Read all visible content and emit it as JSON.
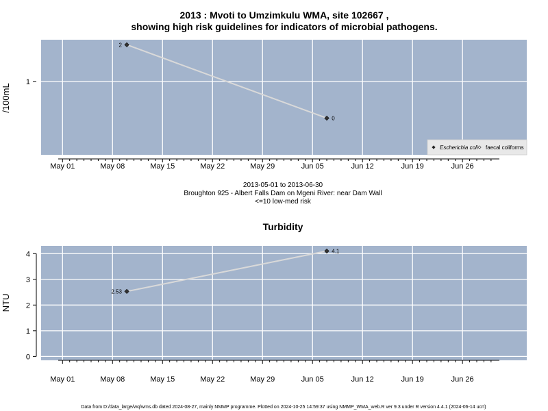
{
  "chart_data": [
    {
      "type": "line",
      "title": "2013 : Mvoti to Umzimkulu WMA, site 102667 ,",
      "subtitle": "showing high risk guidelines for indicators of microbial pathogens.",
      "ylabel": "/100mL",
      "y_scale": "log",
      "y_ticks": [
        1
      ],
      "y_tick_labels": [
        "1"
      ],
      "ylim": [
        0.25,
        2.2
      ],
      "x_ticks": [
        "2013-05-01",
        "2013-05-08",
        "2013-05-15",
        "2013-05-22",
        "2013-05-29",
        "2013-06-05",
        "2013-06-12",
        "2013-06-19",
        "2013-06-26"
      ],
      "x_tick_labels": [
        "May 01",
        "May 08",
        "May 15",
        "May 22",
        "May 29",
        "Jun 05",
        "Jun 12",
        "Jun 19",
        "Jun 26"
      ],
      "xlim": [
        "2013-04-28",
        "2013-07-05"
      ],
      "grid": true,
      "legend_position": "bottom-right",
      "series": [
        {
          "name": "Escherichia coli",
          "x": [
            "2013-05-10",
            "2013-06-07"
          ],
          "y": [
            2,
            0.5
          ],
          "point_labels": [
            "2",
            "0"
          ]
        }
      ],
      "legend": [
        {
          "name": "Escherichia coli",
          "marker": "filled-diamond",
          "italic": true
        },
        {
          "name": "faecal coliforms",
          "marker": "open-diamond",
          "italic": false
        }
      ],
      "captions": [
        "2013-05-01 to 2013-06-30",
        "Broughton 925 - Albert Falls Dam on Mgeni River: near Dam Wall",
        "<=10 low-med risk"
      ]
    },
    {
      "type": "line",
      "title": "Turbidity",
      "ylabel": "NTU",
      "y_scale": "linear",
      "y_ticks": [
        0,
        1,
        2,
        3,
        4
      ],
      "y_tick_labels": [
        "0",
        "1",
        "2",
        "3",
        "4"
      ],
      "ylim": [
        -0.15,
        4.3
      ],
      "x_ticks": [
        "2013-05-01",
        "2013-05-08",
        "2013-05-15",
        "2013-05-22",
        "2013-05-29",
        "2013-06-05",
        "2013-06-12",
        "2013-06-19",
        "2013-06-26"
      ],
      "x_tick_labels": [
        "May 01",
        "May 08",
        "May 15",
        "May 22",
        "May 29",
        "Jun 05",
        "Jun 12",
        "Jun 19",
        "Jun 26"
      ],
      "xlim": [
        "2013-04-28",
        "2013-07-05"
      ],
      "grid": true,
      "series": [
        {
          "x": [
            "2013-05-10",
            "2013-06-07"
          ],
          "y": [
            2.53,
            4.1
          ],
          "point_labels": [
            "2.53",
            "4.1"
          ]
        }
      ]
    }
  ],
  "colors": {
    "panel_bg": "#a3b4cc",
    "grid": "#ffffff",
    "line": "#d9d9d9",
    "marker": "#333333",
    "legend_bg": "#e8e8e8"
  },
  "footer": "Data from D:/data_large/wq/wms.db dated 2024-08-27, mainly NMMP programme. Plotted on 2024-10-25 14:59:37 using NMMP_WMA_web.R ver 9.3 under R version 4.4.1 (2024-06-14 ucrt)"
}
